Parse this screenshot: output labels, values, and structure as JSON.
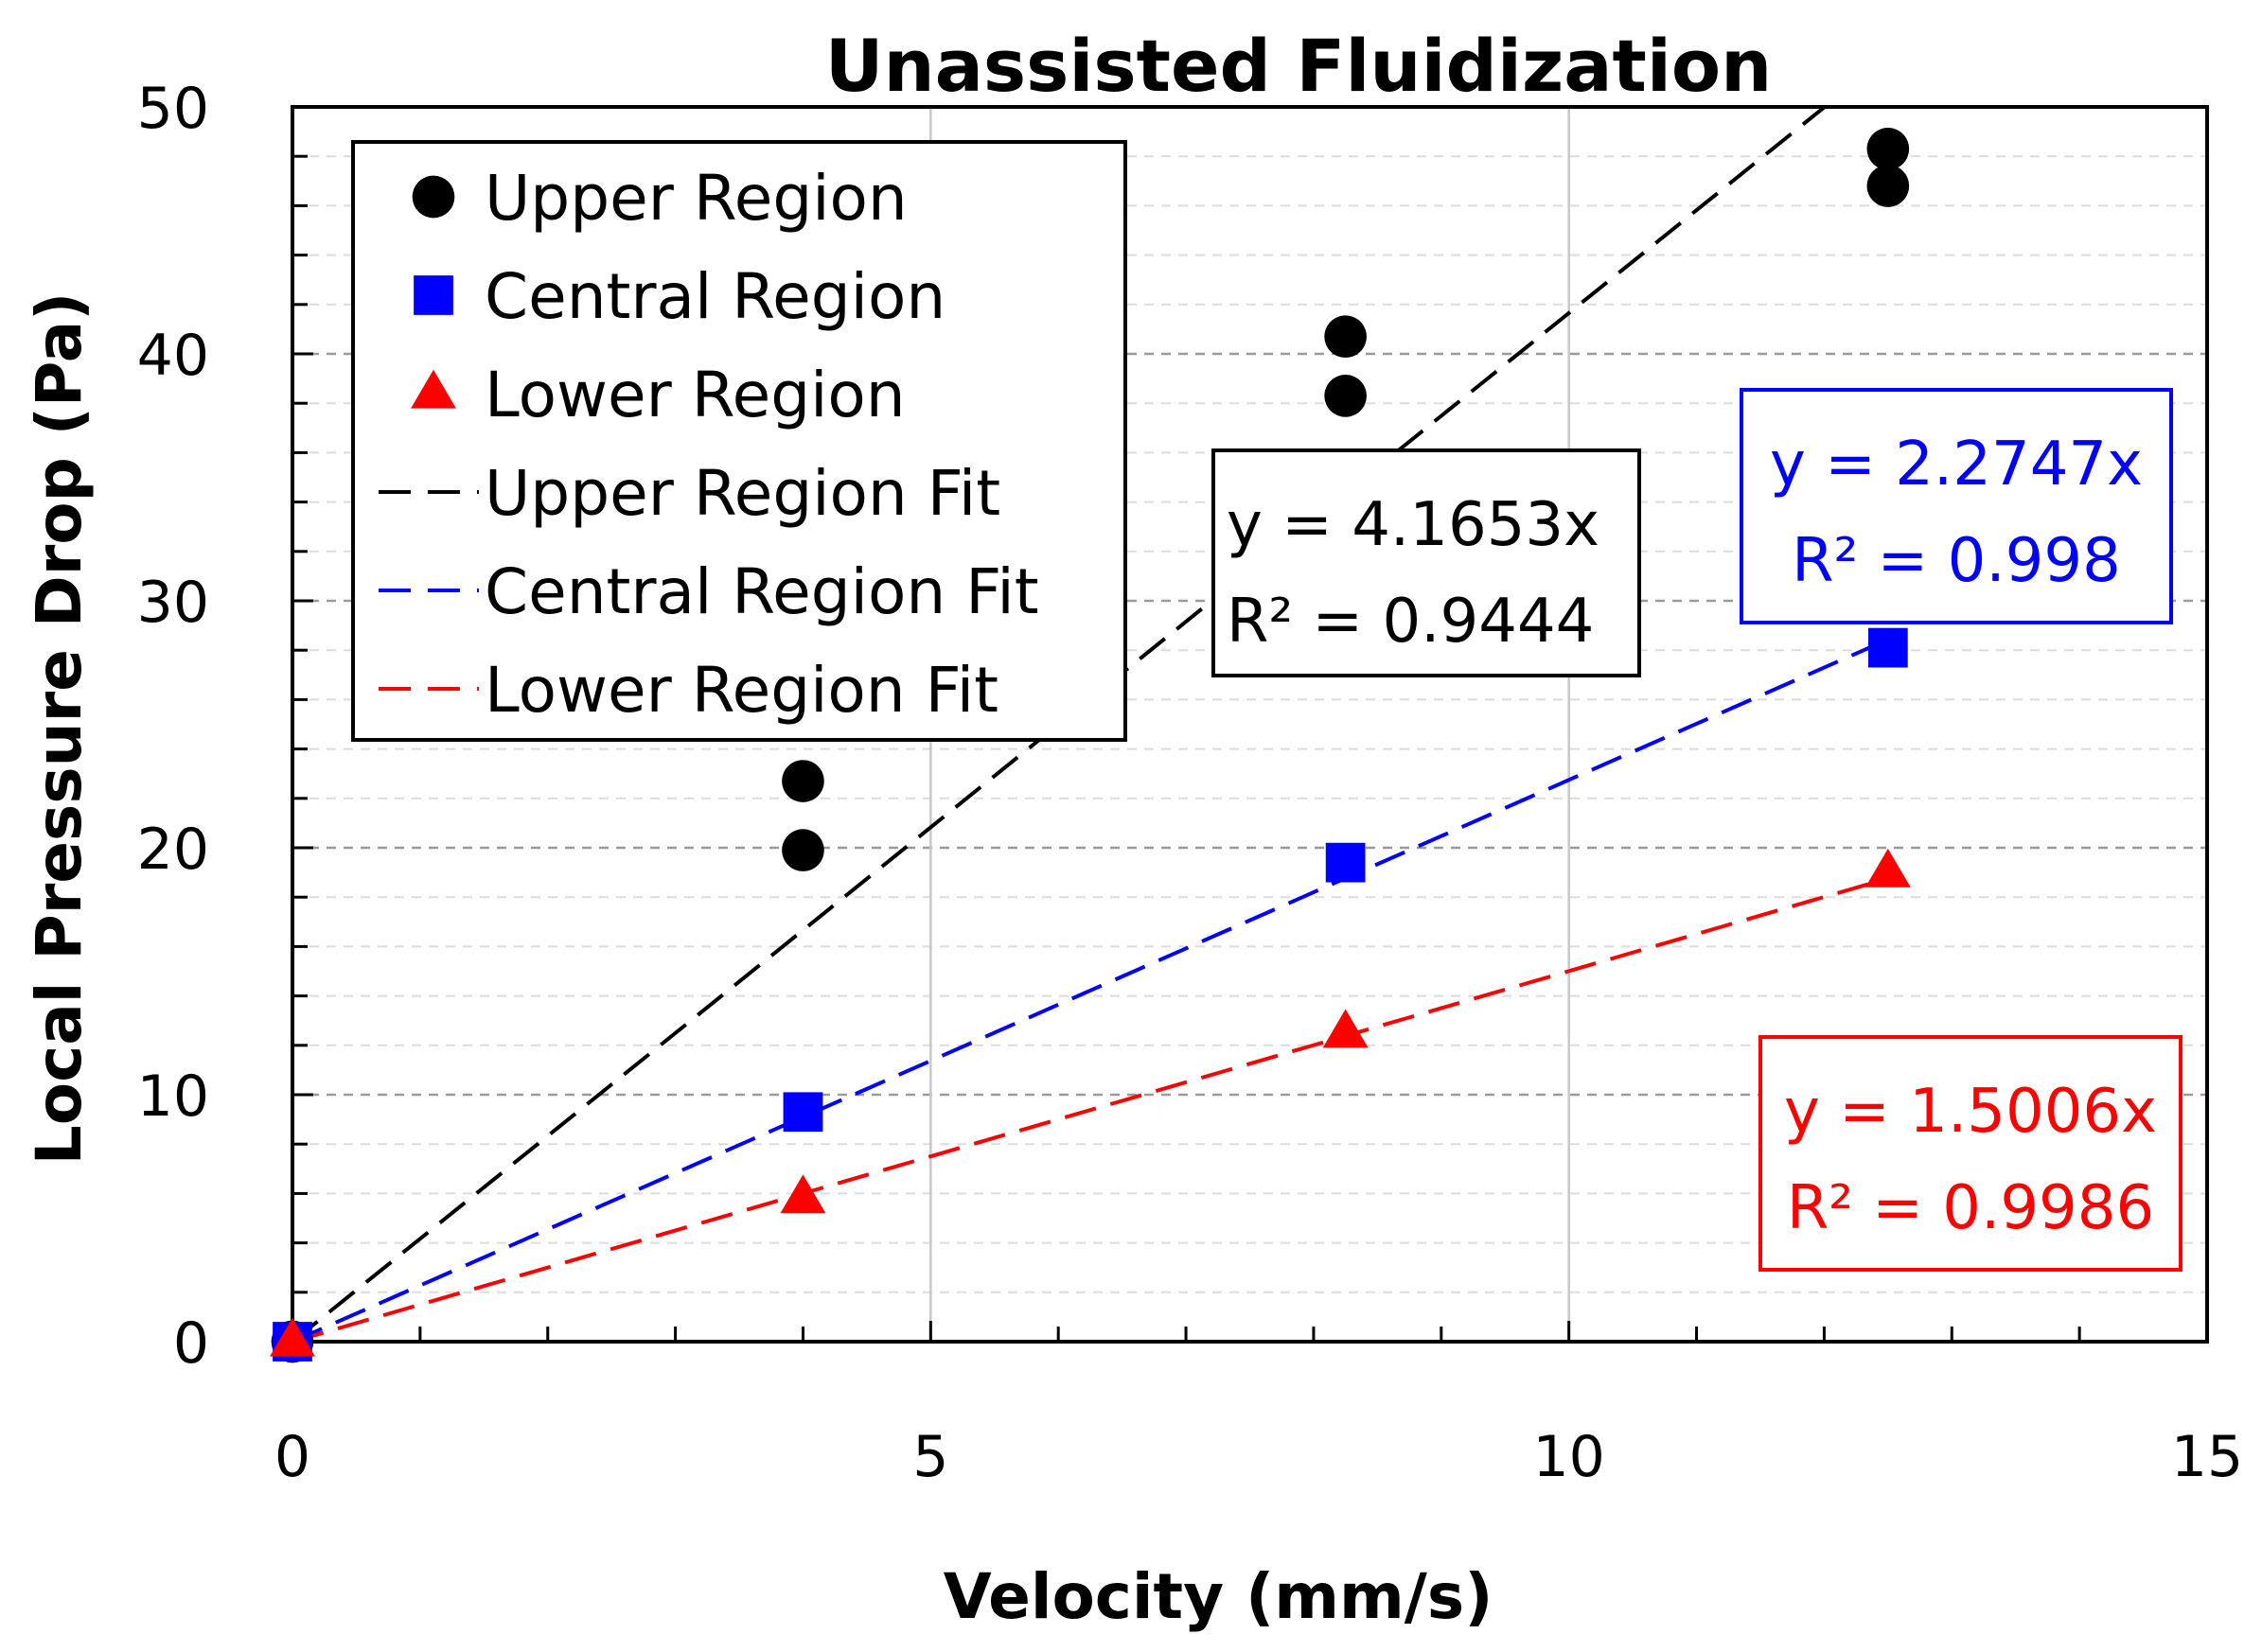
{
  "chart_data": {
    "type": "scatter",
    "title": "Unassisted Fluidization",
    "xlabel": "Velocity (mm/s)",
    "ylabel": "Local Pressure Drop (Pa)",
    "xlim": [
      0,
      15
    ],
    "ylim": [
      0,
      50
    ],
    "x_ticks": [
      0,
      5,
      10,
      15
    ],
    "y_ticks": [
      0,
      10,
      20,
      30,
      40,
      50
    ],
    "x_tick_labels": [
      "0",
      "5",
      "10",
      "15"
    ],
    "y_tick_labels": [
      "0",
      "10",
      "20",
      "30",
      "40",
      "50"
    ],
    "x_minor_step": 1,
    "y_minor_step": 2,
    "legend_position": "top-left",
    "series": [
      {
        "name": "Upper Region",
        "marker": "circle",
        "color": "#000000",
        "points": [
          [
            0,
            0
          ],
          [
            4,
            22.7
          ],
          [
            4,
            19.9
          ],
          [
            8.25,
            40.7
          ],
          [
            8.25,
            38.3
          ],
          [
            12.5,
            48.3
          ],
          [
            12.5,
            46.8
          ]
        ]
      },
      {
        "name": "Central Region",
        "marker": "square",
        "color": "#0000ff",
        "points": [
          [
            0,
            0
          ],
          [
            4,
            9.3
          ],
          [
            8.25,
            19.4
          ],
          [
            12.5,
            28.1
          ]
        ]
      },
      {
        "name": "Lower Region",
        "marker": "triangle",
        "color": "#ff0000",
        "points": [
          [
            0,
            0
          ],
          [
            4,
            5.8
          ],
          [
            8.25,
            12.5
          ],
          [
            12.5,
            19.0
          ]
        ]
      }
    ],
    "fits": [
      {
        "name": "Upper Region Fit",
        "color": "#000000",
        "slope": 4.1653,
        "equation": "y = 4.1653x",
        "r2": "R² = 0.9444"
      },
      {
        "name": "Central Region Fit",
        "color": "#0000ff",
        "slope": 2.2747,
        "equation": "y = 2.2747x",
        "r2": "R² = 0.998"
      },
      {
        "name": "Lower Region Fit",
        "color": "#ff0000",
        "slope": 1.5006,
        "equation": "y = 1.5006x",
        "r2": "R² = 0.9986"
      }
    ]
  }
}
